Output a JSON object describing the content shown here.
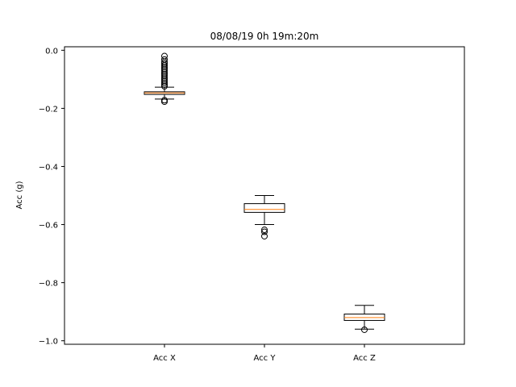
{
  "chart_data": {
    "type": "box",
    "title": "08/08/19 0h 19m:20m",
    "xlabel": "",
    "ylabel": "Acc (g)",
    "ylim": [
      -1.012,
      0.012
    ],
    "yticks": [
      0.0,
      -0.2,
      -0.4,
      -0.6,
      -0.8,
      -1.0
    ],
    "ytick_labels": [
      "0.0",
      "−0.2",
      "−0.4",
      "−0.6",
      "−0.8",
      "−1.0"
    ],
    "grid": false,
    "categories": [
      "Acc X",
      "Acc Y",
      "Acc Z"
    ],
    "boxes": [
      {
        "name": "Acc X",
        "whisker_low": -0.168,
        "q1": -0.152,
        "median": -0.147,
        "q3": -0.143,
        "whisker_high": -0.127,
        "outliers": [
          -0.02,
          -0.032,
          -0.04,
          -0.046,
          -0.052,
          -0.058,
          -0.064,
          -0.07,
          -0.076,
          -0.082,
          -0.088,
          -0.094,
          -0.1,
          -0.106,
          -0.112,
          -0.118,
          -0.124,
          -0.172,
          -0.177
        ]
      },
      {
        "name": "Acc Y",
        "whisker_low": -0.6,
        "q1": -0.558,
        "median": -0.548,
        "q3": -0.528,
        "whisker_high": -0.5,
        "outliers": [
          -0.618,
          -0.625,
          -0.64
        ]
      },
      {
        "name": "Acc Z",
        "whisker_low": -0.96,
        "q1": -0.93,
        "median": -0.92,
        "q3": -0.908,
        "whisker_high": -0.878,
        "outliers": [
          -0.962
        ]
      }
    ],
    "colors": {
      "box_edge": "#000000",
      "median": "#ff7f0e",
      "flier_edge": "#000000",
      "axes": "#000000"
    }
  }
}
